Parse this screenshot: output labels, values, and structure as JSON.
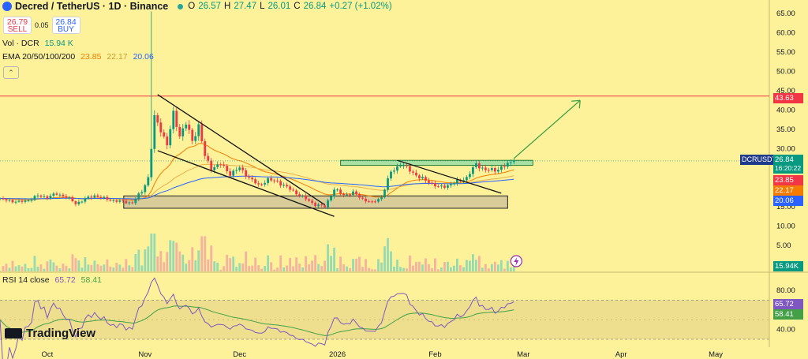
{
  "header": {
    "title": "Decred / TetherUS · 1D · Binance",
    "ohlc": [
      {
        "k": "O",
        "v": "26.57"
      },
      {
        "k": "H",
        "v": "27.47"
      },
      {
        "k": "L",
        "v": "26.01"
      },
      {
        "k": "C",
        "v": "26.84"
      }
    ],
    "change": "+0.27 (+1.02%)"
  },
  "trade": {
    "sell_price": "26.79",
    "sell_label": "SELL",
    "spread": "0.05",
    "buy_price": "26.84",
    "buy_label": "BUY"
  },
  "volume_legend": {
    "label": "Vol · DCR",
    "value": "15.94 K"
  },
  "ema_legend": {
    "label": "EMA 20/50/100/200",
    "v20": "23.85",
    "v50": "22.17",
    "v100": "20.06"
  },
  "rsi_legend": {
    "label": "RSI 14 close",
    "v1": "65.72",
    "v2": "58.41"
  },
  "logo_text": "TradingView",
  "price_axis": [
    "65.00",
    "60.00",
    "55.00",
    "50.00",
    "45.00",
    "40.00",
    "35.00",
    "30.00",
    "25.00",
    "20.00",
    "15.00",
    "10.00",
    "5.00"
  ],
  "rsi_axis": [
    "80.00",
    "60.00",
    "40.00"
  ],
  "time_axis": [
    "Oct",
    "Nov",
    "Dec",
    "2026",
    "Feb",
    "Mar",
    "Apr",
    "May"
  ],
  "labels": {
    "resistance": "43.63",
    "symbol": "DCRUSDT",
    "last_price": "26.84",
    "countdown": "16:20:22",
    "ema20": "23.85",
    "ema50": "22.17",
    "ema100": "20.06",
    "volume": "15.94K",
    "rsi1": "65.72",
    "rsi2": "58.41"
  },
  "colors": {
    "bg": "#fdf29a",
    "up": "#089981",
    "down": "#f23645",
    "ema20": "#f57c00",
    "ema50": "#e8b04a",
    "ema100": "#2962ff",
    "rsi": "#7e57c2",
    "rsi_ma": "#43a047",
    "resistance": "#f23645",
    "arrow": "#43a047"
  },
  "chart_data": {
    "type": "candlestick",
    "symbol": "DCRUSDT",
    "timeframe": "1D",
    "last": {
      "open": 26.57,
      "high": 27.47,
      "low": 26.01,
      "close": 26.84
    },
    "y_range": [
      0,
      67
    ],
    "resistance_level": 43.63,
    "ema": {
      "20": 23.85,
      "50": 22.17,
      "100": 20.06
    },
    "rsi": {
      "value": 65.72,
      "ma": 58.41,
      "bands": [
        70,
        30
      ],
      "range": [
        28,
        88
      ]
    },
    "closes": [
      {
        "d": "2025-09-16",
        "c": 16.9
      },
      {
        "d": "2025-09-19",
        "c": 16.6
      },
      {
        "d": "2025-09-22",
        "c": 16.2
      },
      {
        "d": "2025-09-25",
        "c": 16.7
      },
      {
        "d": "2025-09-28",
        "c": 17.8
      },
      {
        "d": "2025-10-01",
        "c": 17.5
      },
      {
        "d": "2025-10-04",
        "c": 18.3
      },
      {
        "d": "2025-10-07",
        "c": 17.6
      },
      {
        "d": "2025-10-10",
        "c": 15.8
      },
      {
        "d": "2025-10-13",
        "c": 17.0
      },
      {
        "d": "2025-10-16",
        "c": 17.9
      },
      {
        "d": "2025-10-19",
        "c": 17.1
      },
      {
        "d": "2025-10-22",
        "c": 16.6
      },
      {
        "d": "2025-10-25",
        "c": 16.3
      },
      {
        "d": "2025-10-28",
        "c": 16.0
      },
      {
        "d": "2025-10-31",
        "c": 19.0
      },
      {
        "d": "2025-11-02",
        "c": 22.5
      },
      {
        "d": "2025-11-04",
        "c": 38.0
      },
      {
        "d": "2025-11-06",
        "c": 35.0
      },
      {
        "d": "2025-11-08",
        "c": 31.0
      },
      {
        "d": "2025-11-10",
        "c": 39.0
      },
      {
        "d": "2025-11-12",
        "c": 33.5
      },
      {
        "d": "2025-11-14",
        "c": 36.5
      },
      {
        "d": "2025-11-16",
        "c": 32.0
      },
      {
        "d": "2025-11-18",
        "c": 36.0
      },
      {
        "d": "2025-11-20",
        "c": 28.0
      },
      {
        "d": "2025-11-22",
        "c": 25.0
      },
      {
        "d": "2025-11-25",
        "c": 26.0
      },
      {
        "d": "2025-11-28",
        "c": 23.5
      },
      {
        "d": "2025-12-01",
        "c": 25.0
      },
      {
        "d": "2025-12-04",
        "c": 22.5
      },
      {
        "d": "2025-12-07",
        "c": 20.5
      },
      {
        "d": "2025-12-10",
        "c": 22.0
      },
      {
        "d": "2025-12-13",
        "c": 21.5
      },
      {
        "d": "2025-12-16",
        "c": 20.0
      },
      {
        "d": "2025-12-19",
        "c": 18.5
      },
      {
        "d": "2025-12-22",
        "c": 17.0
      },
      {
        "d": "2025-12-25",
        "c": 15.5
      },
      {
        "d": "2025-12-28",
        "c": 15.0
      },
      {
        "d": "2025-12-31",
        "c": 19.5
      },
      {
        "d": "2026-01-03",
        "c": 18.0
      },
      {
        "d": "2026-01-06",
        "c": 18.6
      },
      {
        "d": "2026-01-09",
        "c": 17.0
      },
      {
        "d": "2026-01-12",
        "c": 16.0
      },
      {
        "d": "2026-01-15",
        "c": 17.5
      },
      {
        "d": "2026-01-18",
        "c": 24.0
      },
      {
        "d": "2026-01-21",
        "c": 26.0
      },
      {
        "d": "2026-01-24",
        "c": 24.5
      },
      {
        "d": "2026-01-27",
        "c": 22.5
      },
      {
        "d": "2026-01-30",
        "c": 21.5
      },
      {
        "d": "2026-02-02",
        "c": 20.0
      },
      {
        "d": "2026-02-05",
        "c": 20.5
      },
      {
        "d": "2026-02-08",
        "c": 21.5
      },
      {
        "d": "2026-02-11",
        "c": 22.5
      },
      {
        "d": "2026-02-14",
        "c": 26.0
      },
      {
        "d": "2026-02-17",
        "c": 24.5
      },
      {
        "d": "2026-02-20",
        "c": 24.5
      },
      {
        "d": "2026-02-23",
        "c": 25.5
      },
      {
        "d": "2026-02-26",
        "c": 26.84
      }
    ]
  }
}
